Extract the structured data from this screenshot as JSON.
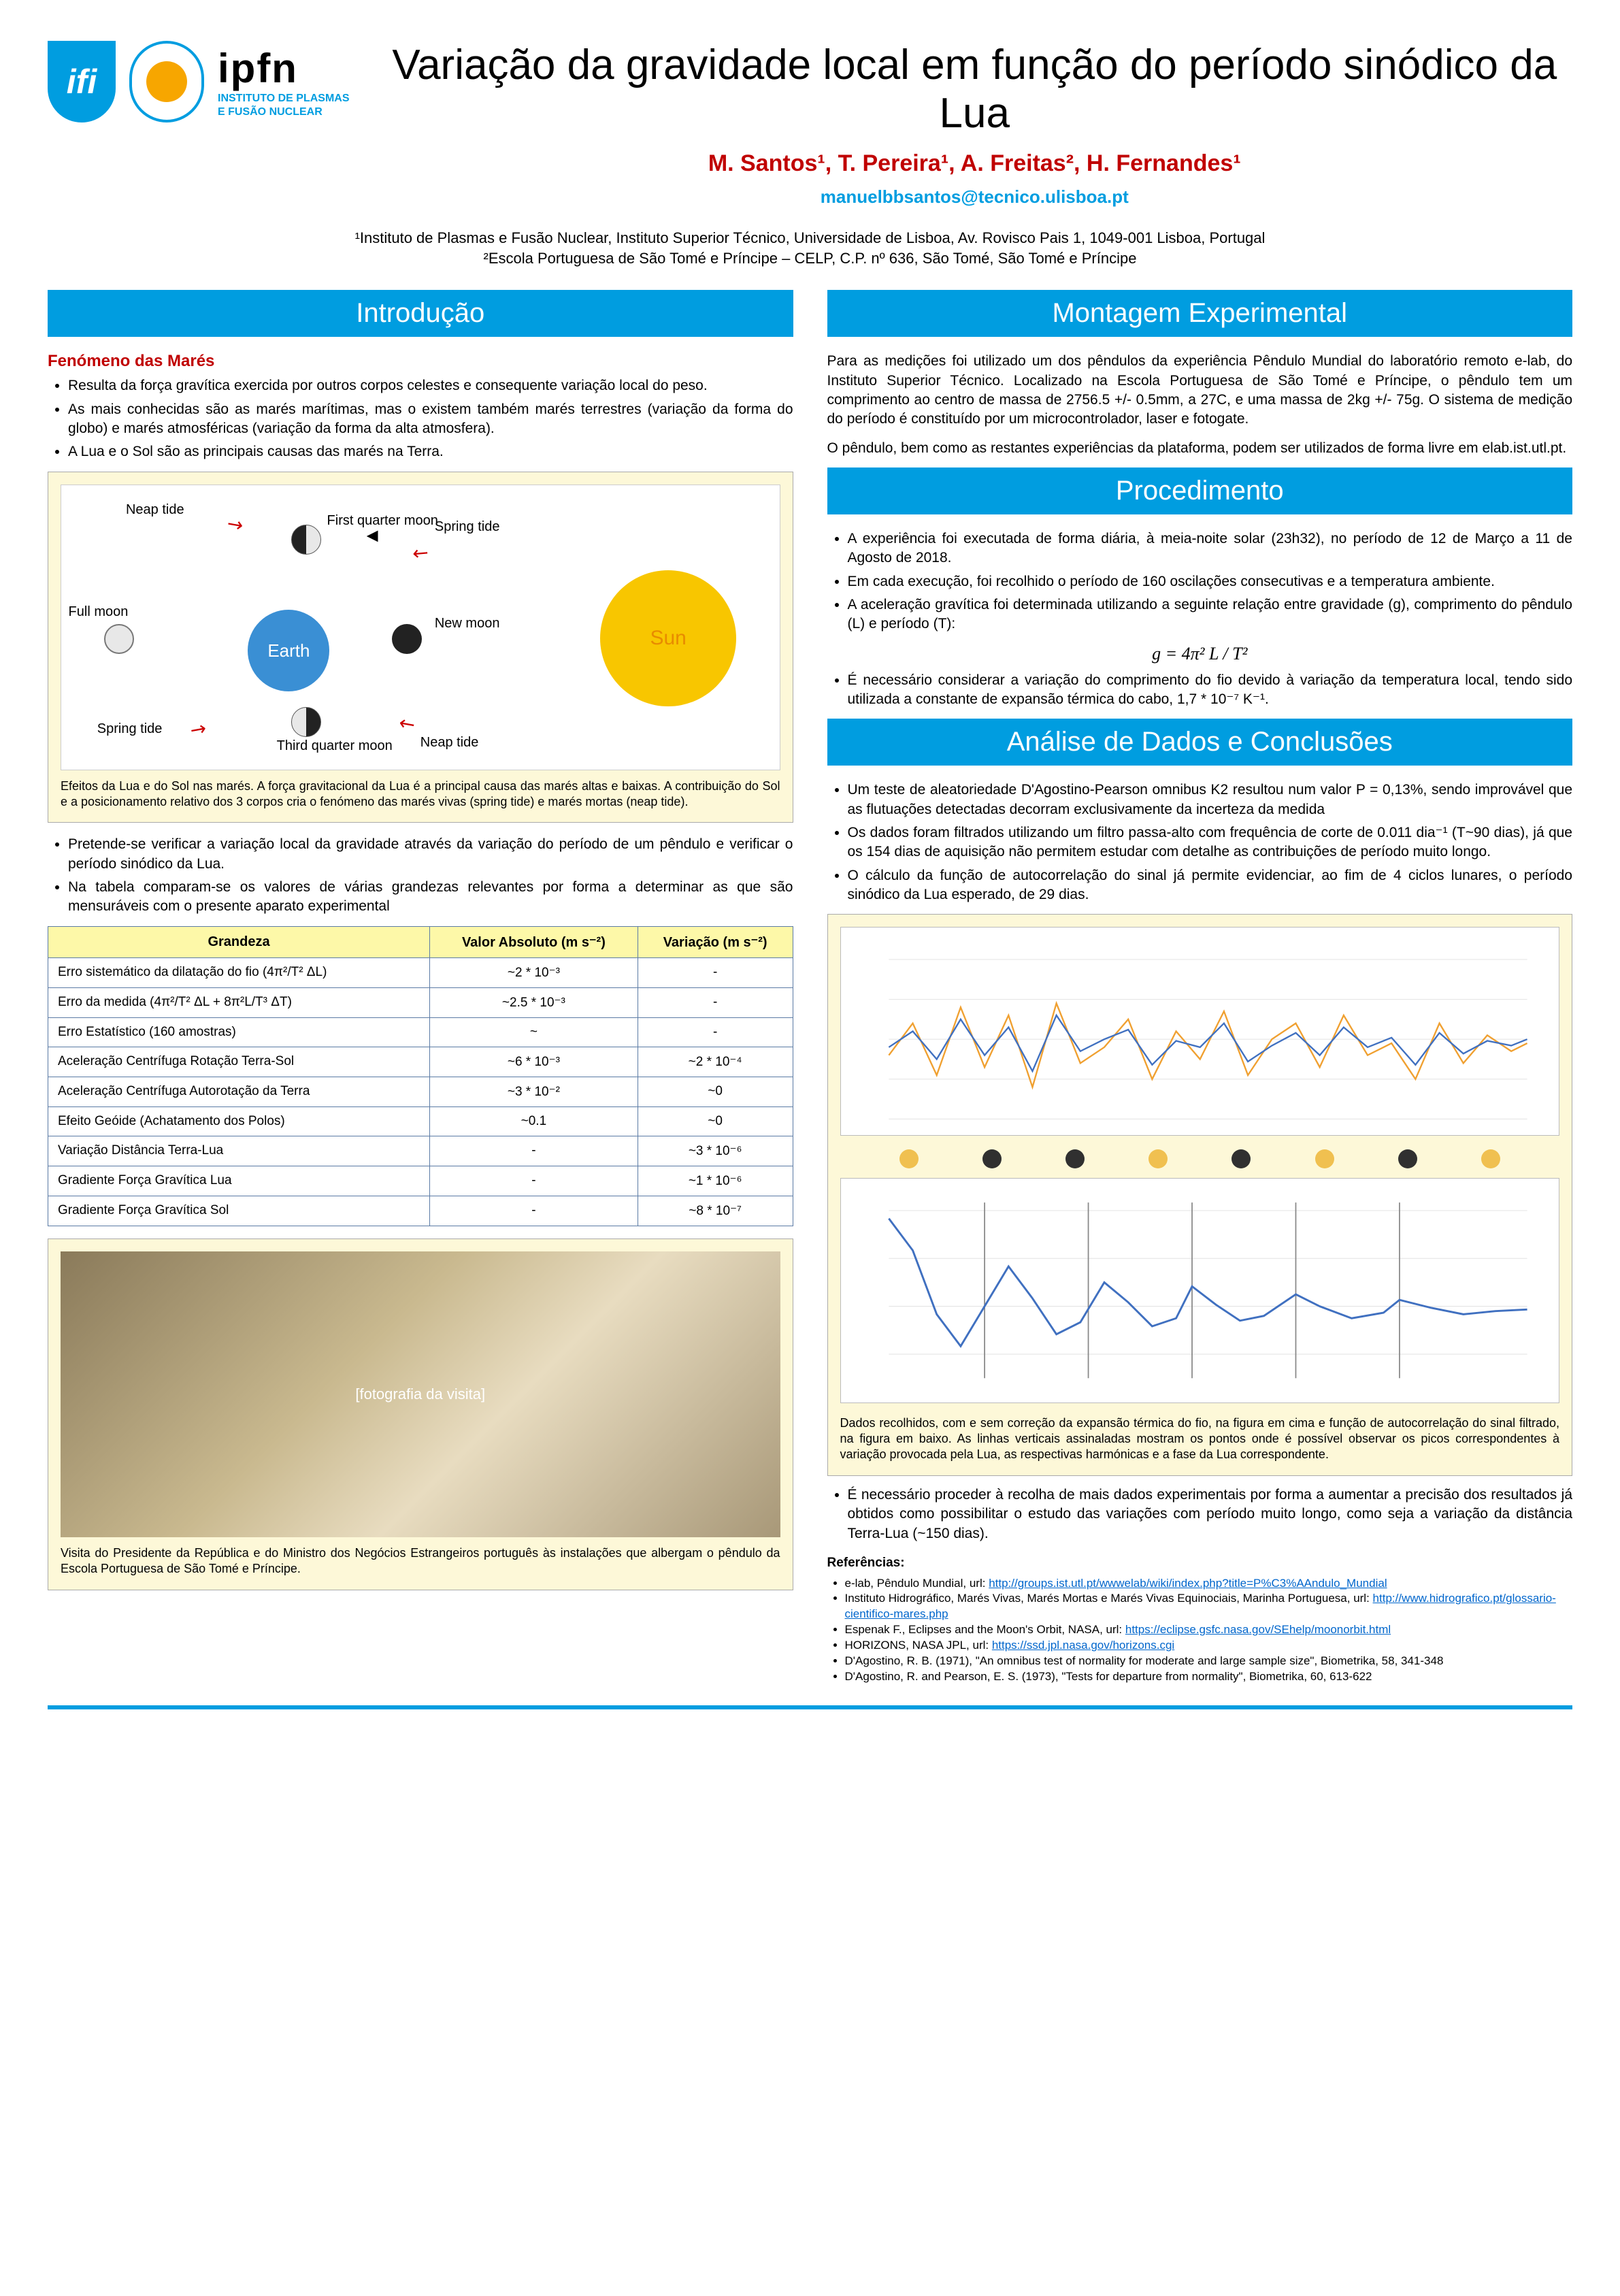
{
  "header": {
    "logo_ist_text": "ifi",
    "logo_ipfn_big": "ipfn",
    "logo_ipfn_line1": "INSTITUTO DE PLASMAS",
    "logo_ipfn_line2": "E FUSÃO NUCLEAR",
    "title": "Variação da gravidade local em função do período sinódico da Lua",
    "authors_html": "M. Santos¹, T. Pereira¹, A. Freitas², H. Fernandes¹",
    "email": "manuelbbsantos@tecnico.ulisboa.pt",
    "affil1": "¹Instituto de Plasmas e Fusão Nuclear, Instituto Superior Técnico, Universidade de Lisboa, Av. Rovisco Pais 1, 1049-001 Lisboa, Portugal",
    "affil2": "²Escola Portuguesa de São Tomé e Príncipe – CELP, C.P. nº 636, São Tomé, São Tomé e Príncipe"
  },
  "colors": {
    "accent": "#009de0",
    "author_red": "#c00000",
    "fig_bg": "#fdf8d8",
    "table_header_bg": "#fdf8a8",
    "table_border": "#5b7ba5",
    "sun": "#f8c600",
    "earth": "#3a8fd4"
  },
  "left": {
    "intro_head": "Introdução",
    "intro_sub": "Fenómeno das Marés",
    "intro_bullets": [
      "Resulta da força gravítica exercida por outros corpos celestes e consequente variação local do peso.",
      "As mais conhecidas são as marés marítimas, mas o existem também marés terrestres (variação da forma do globo) e marés atmosféricas (variação da forma da alta atmosfera).",
      "A Lua e o Sol são as principais causas das marés na Terra."
    ],
    "tide_labels": {
      "earth": "Earth",
      "sun": "Sun",
      "neap1": "Neap tide",
      "neap2": "Neap tide",
      "spring1": "Spring tide",
      "spring2": "Spring tide",
      "full_moon": "Full moon",
      "new_moon": "New moon",
      "fq": "First quarter moon",
      "tq": "Third quarter moon"
    },
    "tide_caption": "Efeitos da Lua e do Sol nas marés. A força gravitacional da Lua é a principal causa das marés altas e baixas. A contribuição do Sol e a posicionamento relativo dos 3 corpos cria o fenómeno das marés vivas (spring tide) e marés mortas (neap tide).",
    "after_fig_bullets": [
      "Pretende-se verificar a variação local da gravidade através da variação do período de um pêndulo e verificar o período sinódico da Lua.",
      "Na tabela comparam-se os valores de várias grandezas relevantes por forma a determinar as que são mensuráveis com o presente aparato experimental"
    ],
    "table": {
      "headers": [
        "Grandeza",
        "Valor Absoluto (m s⁻²)",
        "Variação (m s⁻²)"
      ],
      "rows": [
        [
          "Erro sistemático da dilatação do fio (4π²/T² ΔL)",
          "~2 * 10⁻³",
          "-"
        ],
        [
          "Erro da medida (4π²/T² ΔL + 8π²L/T³ ΔT)",
          "~2.5 * 10⁻³",
          "-"
        ],
        [
          "Erro Estatístico (160 amostras)",
          "~",
          "-"
        ],
        [
          "Aceleração Centrífuga Rotação Terra-Sol",
          "~6 * 10⁻³",
          "~2 * 10⁻⁴"
        ],
        [
          "Aceleração Centrífuga Autorotação da Terra",
          "~3 * 10⁻²",
          "~0"
        ],
        [
          "Efeito Geóide (Achatamento dos Polos)",
          "~0.1",
          "~0"
        ],
        [
          "Variação Distância Terra-Lua",
          "-",
          "~3 * 10⁻⁶"
        ],
        [
          "Gradiente Força Gravítica Lua",
          "-",
          "~1 * 10⁻⁶"
        ],
        [
          "Gradiente Força Gravítica Sol",
          "-",
          "~8 * 10⁻⁷"
        ]
      ]
    },
    "photo_caption": "Visita do Presidente da República e do Ministro dos Negócios Estrangeiros português às instalações que albergam o pêndulo da Escola Portuguesa de São Tomé e Príncipe.",
    "photo_placeholder": "[fotografia da visita]"
  },
  "right": {
    "exp_head": "Montagem  Experimental",
    "exp_p1": "Para as medições foi utilizado um dos pêndulos da experiência Pêndulo Mundial do laboratório remoto e-lab, do Instituto Superior Técnico. Localizado na Escola Portuguesa de São Tomé e Príncipe, o pêndulo tem um comprimento ao centro de massa de 2756.5 +/- 0.5mm, a 27C, e uma massa de 2kg +/- 75g. O sistema de medição do período é constituído por um microcontrolador, laser e fotogate.",
    "exp_p2": "O pêndulo, bem como as restantes experiências da plataforma, podem ser utilizados de forma livre em elab.ist.utl.pt.",
    "proc_head": "Procedimento",
    "proc_bullets": [
      "A experiência foi executada de forma diária, à meia-noite solar (23h32), no período de 12 de Março a 11 de Agosto de 2018.",
      "Em cada execução, foi recolhido o período de 160 oscilações consecutivas e a temperatura ambiente.",
      "A aceleração gravítica foi determinada utilizando a seguinte relação entre gravidade (g), comprimento do pêndulo (L) e período (T):"
    ],
    "formula": "g = 4π² L / T²",
    "proc_after": "É necessário considerar a variação do comprimento do fio devido à variação da temperatura local, tendo sido utilizada a constante de expansão térmica do cabo, 1,7 * 10⁻⁷ K⁻¹.",
    "analysis_head": "Análise de Dados e Conclusões",
    "analysis_bullets": [
      "Um teste de aleatoriedade D'Agostino-Pearson omnibus K2 resultou num valor P = 0,13%, sendo improvável que as flutuações detectadas decorram exclusivamente da incerteza da medida",
      "Os dados foram filtrados utilizando um filtro passa-alto com frequência de corte de 0.011 dia⁻¹ (T~90 dias), já que os 154 dias de aquisição não permitem estudar com detalhe as contribuições de período muito longo.",
      "O cálculo da função de autocorrelação do sinal já permite evidenciar, ao fim de 4 ciclos lunares, o período sinódico da Lua esperado, de 29 dias."
    ],
    "chart1": {
      "type": "line",
      "series_colors": [
        "#f0a030",
        "#4070c0"
      ],
      "x_range": [
        0,
        154
      ],
      "y_range": [
        -0.002,
        0.002
      ],
      "background": "#ffffff",
      "grid_color": "#e6e6e6"
    },
    "moon_phases": [
      {
        "color": "#f0c050"
      },
      {
        "color": "#303030"
      },
      {
        "color": "#303030"
      },
      {
        "color": "#f0c050"
      },
      {
        "color": "#303030"
      },
      {
        "color": "#f0c050"
      },
      {
        "color": "#303030"
      },
      {
        "color": "#f0c050"
      }
    ],
    "chart2": {
      "type": "line",
      "series_colors": [
        "#4070c0"
      ],
      "x_range": [
        0,
        154
      ],
      "y_range": [
        -1,
        1
      ],
      "vlines_color": "#888888",
      "background": "#ffffff",
      "grid_color": "#e6e6e6"
    },
    "chart_caption": "Dados recolhidos, com e sem correção da expansão térmica do fio, na figura em cima e função de autocorrelação do sinal filtrado, na figura em baixo. As linhas verticais assinaladas mostram os pontos onde é possível observar os picos correspondentes à variação provocada pela Lua, as respectivas harmónicas e a fase da Lua correspondente.",
    "final_bullet": "É necessário proceder à recolha de mais dados experimentais por forma a aumentar a precisão dos resultados já obtidos como possibilitar o estudo das variações com período muito longo, como seja a variação da distância Terra-Lua (~150 dias).",
    "refs_title": "Referências:",
    "refs": [
      {
        "text": "e-lab, Pêndulo Mundial, url: ",
        "url": "http://groups.ist.utl.pt/wwwelab/wiki/index.php?title=P%C3%AAndulo_Mundial"
      },
      {
        "text": "Instituto Hidrográfico, Marés Vivas, Marés Mortas e Marés Vivas Equinociais, Marinha Portuguesa, url: ",
        "url": "http://www.hidrografico.pt/glossario-cientifico-mares.php"
      },
      {
        "text": "Espenak F., Eclipses and the Moon's Orbit, NASA, url: ",
        "url": "https://eclipse.gsfc.nasa.gov/SEhelp/moonorbit.html"
      },
      {
        "text": "HORIZONS, NASA JPL, url: ",
        "url": "https://ssd.jpl.nasa.gov/horizons.cgi"
      },
      {
        "text": "D'Agostino, R. B. (1971), \"An omnibus test of normality for moderate and large sample size\", Biometrika, 58, 341-348",
        "url": ""
      },
      {
        "text": "D'Agostino, R. and Pearson, E. S. (1973), \"Tests for departure from normality\", Biometrika, 60, 613-622",
        "url": ""
      }
    ]
  }
}
